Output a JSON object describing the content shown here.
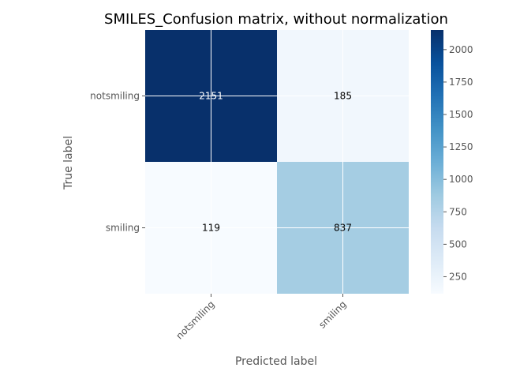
{
  "chart_data": {
    "type": "heatmap",
    "title": "SMILES_Confusion matrix, without normalization",
    "xlabel": "Predicted label",
    "ylabel": "True label",
    "x_categories": [
      "notsmiling",
      "smiling"
    ],
    "y_categories": [
      "notsmiling",
      "smiling"
    ],
    "values": [
      [
        2151,
        185
      ],
      [
        119,
        837
      ]
    ],
    "colormap": "Blues",
    "colorbar": {
      "range": [
        119,
        2151
      ],
      "ticks": [
        250,
        500,
        750,
        1000,
        1250,
        1500,
        1750,
        2000
      ]
    },
    "grid": true,
    "cell_text_colors": {
      "dark": "#ffffff",
      "light": "#000000"
    }
  }
}
